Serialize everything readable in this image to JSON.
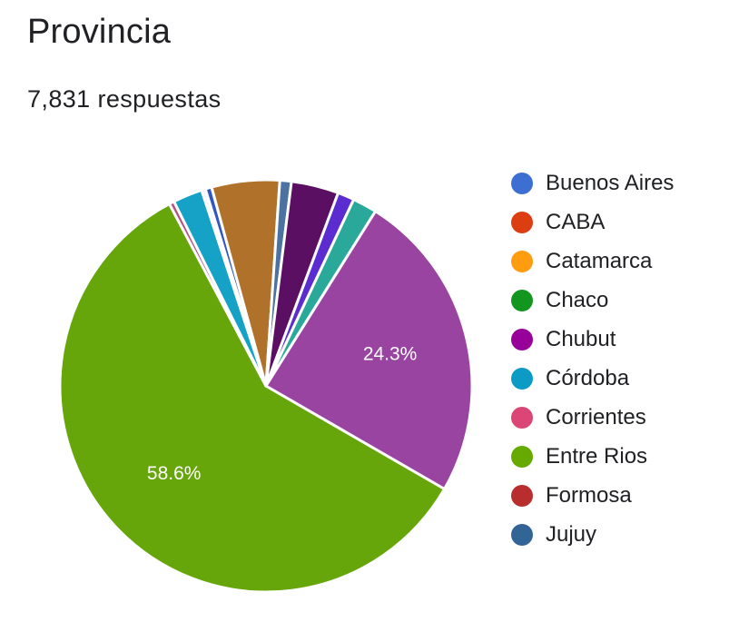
{
  "title": "Provincia",
  "subtitle": "7,831 respuestas",
  "chart_data": {
    "type": "pie",
    "slices": [
      {
        "name": "Entre Rios",
        "value": 58.6,
        "color": "#67a60a",
        "label": "58.6%"
      },
      {
        "name": "",
        "value": 0.4,
        "color": "#b5517f"
      },
      {
        "name": "",
        "value": 2.3,
        "color": "#16a2c6"
      },
      {
        "name": "",
        "value": 0.3,
        "color": "#eef3f6"
      },
      {
        "name": "",
        "value": 0.5,
        "color": "#3257c2"
      },
      {
        "name": "",
        "value": 5.3,
        "color": "#b0722a"
      },
      {
        "name": "",
        "value": 0.9,
        "color": "#4b72a1"
      },
      {
        "name": "",
        "value": 3.7,
        "color": "#5a0f63"
      },
      {
        "name": "",
        "value": 1.3,
        "color": "#5b2dd0"
      },
      {
        "name": "",
        "value": 1.9,
        "color": "#2aa99b"
      },
      {
        "name": "",
        "value": 24.3,
        "color": "#9a44a1",
        "label": "24.3%"
      }
    ],
    "legend": {
      "placement": "right",
      "entries": [
        {
          "name": "Buenos Aires",
          "color": "#3c6fd1"
        },
        {
          "name": "CABA",
          "color": "#dc3e12"
        },
        {
          "name": "Catamarca",
          "color": "#ff9c0f"
        },
        {
          "name": "Chaco",
          "color": "#139620"
        },
        {
          "name": "Chubut",
          "color": "#970099"
        },
        {
          "name": "Córdoba",
          "color": "#0c9bc5"
        },
        {
          "name": "Corrientes",
          "color": "#dc4677"
        },
        {
          "name": "Entre Rios",
          "color": "#66aa00"
        },
        {
          "name": "Formosa",
          "color": "#b82e2e"
        },
        {
          "name": "Jujuy",
          "color": "#326496"
        }
      ]
    }
  }
}
